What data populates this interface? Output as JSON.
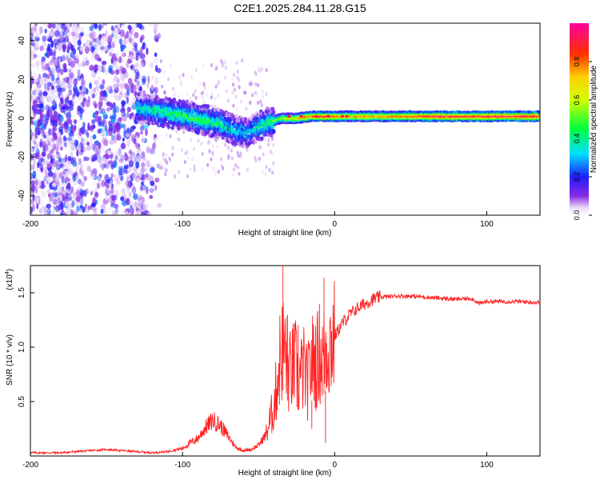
{
  "title": "C2E1.2025.284.11.28.G15",
  "chart_data": [
    {
      "type": "heatmap",
      "title": "C2E1.2025.284.11.28.G15",
      "xlabel": "Height of straight line (km)",
      "ylabel": "Frequency (Hz)",
      "xlim": [
        -200,
        135
      ],
      "ylim": [
        -50,
        49
      ],
      "xticks": [
        -200,
        -100,
        0,
        100
      ],
      "yticks": [
        -40,
        -20,
        0,
        20,
        40
      ],
      "colorbar": {
        "label": "Normalized spectral amplitude",
        "range": [
          0,
          1
        ],
        "ticks": [
          "0.0",
          "0.2",
          "0.4",
          "0.6",
          "0.8"
        ],
        "tick_values": [
          0.0,
          0.2,
          0.4,
          0.6,
          0.8
        ]
      },
      "ridge": [
        {
          "x": -125,
          "y": 5,
          "a": 0.35
        },
        {
          "x": -110,
          "y": 3,
          "a": 0.42
        },
        {
          "x": -95,
          "y": 1,
          "a": 0.45
        },
        {
          "x": -85,
          "y": -1,
          "a": 0.45
        },
        {
          "x": -75,
          "y": -3,
          "a": 0.42
        },
        {
          "x": -65,
          "y": -6,
          "a": 0.35
        },
        {
          "x": -57,
          "y": -8,
          "a": 0.3
        },
        {
          "x": -50,
          "y": -4,
          "a": 0.4
        },
        {
          "x": -42,
          "y": -2,
          "a": 0.45
        },
        {
          "x": -35,
          "y": 0,
          "a": 0.6
        },
        {
          "x": -25,
          "y": 0,
          "a": 0.7
        },
        {
          "x": -15,
          "y": 1,
          "a": 0.85
        },
        {
          "x": -5,
          "y": 1,
          "a": 0.9
        },
        {
          "x": 10,
          "y": 1,
          "a": 0.75
        },
        {
          "x": 40,
          "y": 1,
          "a": 0.8
        },
        {
          "x": 70,
          "y": 1,
          "a": 0.95
        },
        {
          "x": 90,
          "y": 1,
          "a": 0.9
        },
        {
          "x": 110,
          "y": 1,
          "a": 0.95
        },
        {
          "x": 135,
          "y": 1,
          "a": 0.95
        }
      ]
    },
    {
      "type": "line",
      "xlabel": "Height of straight line (km)",
      "ylabel": "SNR (10 * v/v)",
      "y_multiplier": "(x10",
      "y_multiplier_exp": "4",
      "y_multiplier_close": ")",
      "xlim": [
        -200,
        135
      ],
      "ylim": [
        0,
        1.75
      ],
      "xticks": [
        -200,
        -100,
        0,
        100
      ],
      "yticks": [
        0.5,
        1.0,
        1.5
      ],
      "ytick_labels": [
        "0.5",
        "1.0",
        "1.5"
      ],
      "color": "#ff2020",
      "series": [
        {
          "name": "SNR",
          "x": [
            -200,
            -190,
            -180,
            -170,
            -160,
            -150,
            -140,
            -130,
            -120,
            -110,
            -100,
            -95,
            -90,
            -85,
            -80,
            -75,
            -70,
            -65,
            -60,
            -55,
            -50,
            -45,
            -40,
            -38,
            -36,
            -34,
            -32,
            -30,
            -28,
            -26,
            -24,
            -22,
            -20,
            -18,
            -16,
            -14,
            -12,
            -10,
            -8,
            -6,
            -4,
            -2,
            0,
            5,
            10,
            15,
            20,
            25,
            30,
            40,
            50,
            60,
            70,
            80,
            90,
            95,
            100,
            110,
            120,
            135
          ],
          "values": [
            0.03,
            0.03,
            0.03,
            0.04,
            0.05,
            0.06,
            0.05,
            0.04,
            0.03,
            0.04,
            0.07,
            0.12,
            0.16,
            0.26,
            0.33,
            0.28,
            0.18,
            0.08,
            0.05,
            0.06,
            0.1,
            0.2,
            0.45,
            0.65,
            0.9,
            1.0,
            0.95,
            0.75,
            0.8,
            0.85,
            0.7,
            0.75,
            0.8,
            0.65,
            0.8,
            0.9,
            0.85,
            0.95,
            0.9,
            1.0,
            1.02,
            1.05,
            1.1,
            1.22,
            1.3,
            1.36,
            1.4,
            1.44,
            1.46,
            1.47,
            1.47,
            1.46,
            1.45,
            1.44,
            1.45,
            1.4,
            1.42,
            1.42,
            1.42,
            1.41
          ]
        }
      ],
      "spikes": [
        {
          "x": -34,
          "y": 1.75
        },
        {
          "x": -31,
          "y": 1.3
        },
        {
          "x": -24,
          "y": 1.2
        },
        {
          "x": -7,
          "y": 1.64
        },
        {
          "x": -6,
          "y": 0.12
        },
        {
          "x": -15,
          "y": 0.25
        }
      ]
    }
  ]
}
